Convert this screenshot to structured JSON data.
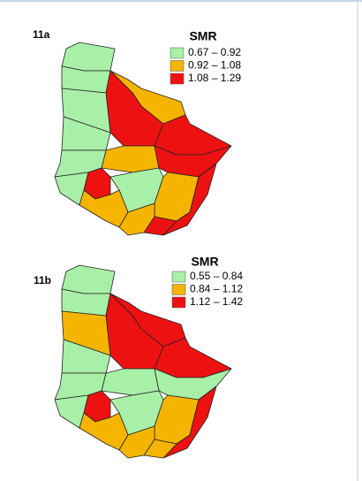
{
  "panels": [
    {
      "label": "11a",
      "legend": {
        "title": "SMR",
        "items": [
          {
            "label": "0.67 – 0.92",
            "color": "#a8f0a8"
          },
          {
            "label": "0.92 – 1.08",
            "color": "#f5b400"
          },
          {
            "label": "1.08 – 1.29",
            "color": "#ee1111"
          }
        ]
      }
    },
    {
      "label": "11b",
      "legend": {
        "title": "SMR",
        "items": [
          {
            "label": "0.55 – 0.84",
            "color": "#a8f0a8"
          },
          {
            "label": "0.84 – 1.12",
            "color": "#f5b400"
          },
          {
            "label": "1.12 – 1.42",
            "color": "#ee1111"
          }
        ]
      }
    }
  ]
}
